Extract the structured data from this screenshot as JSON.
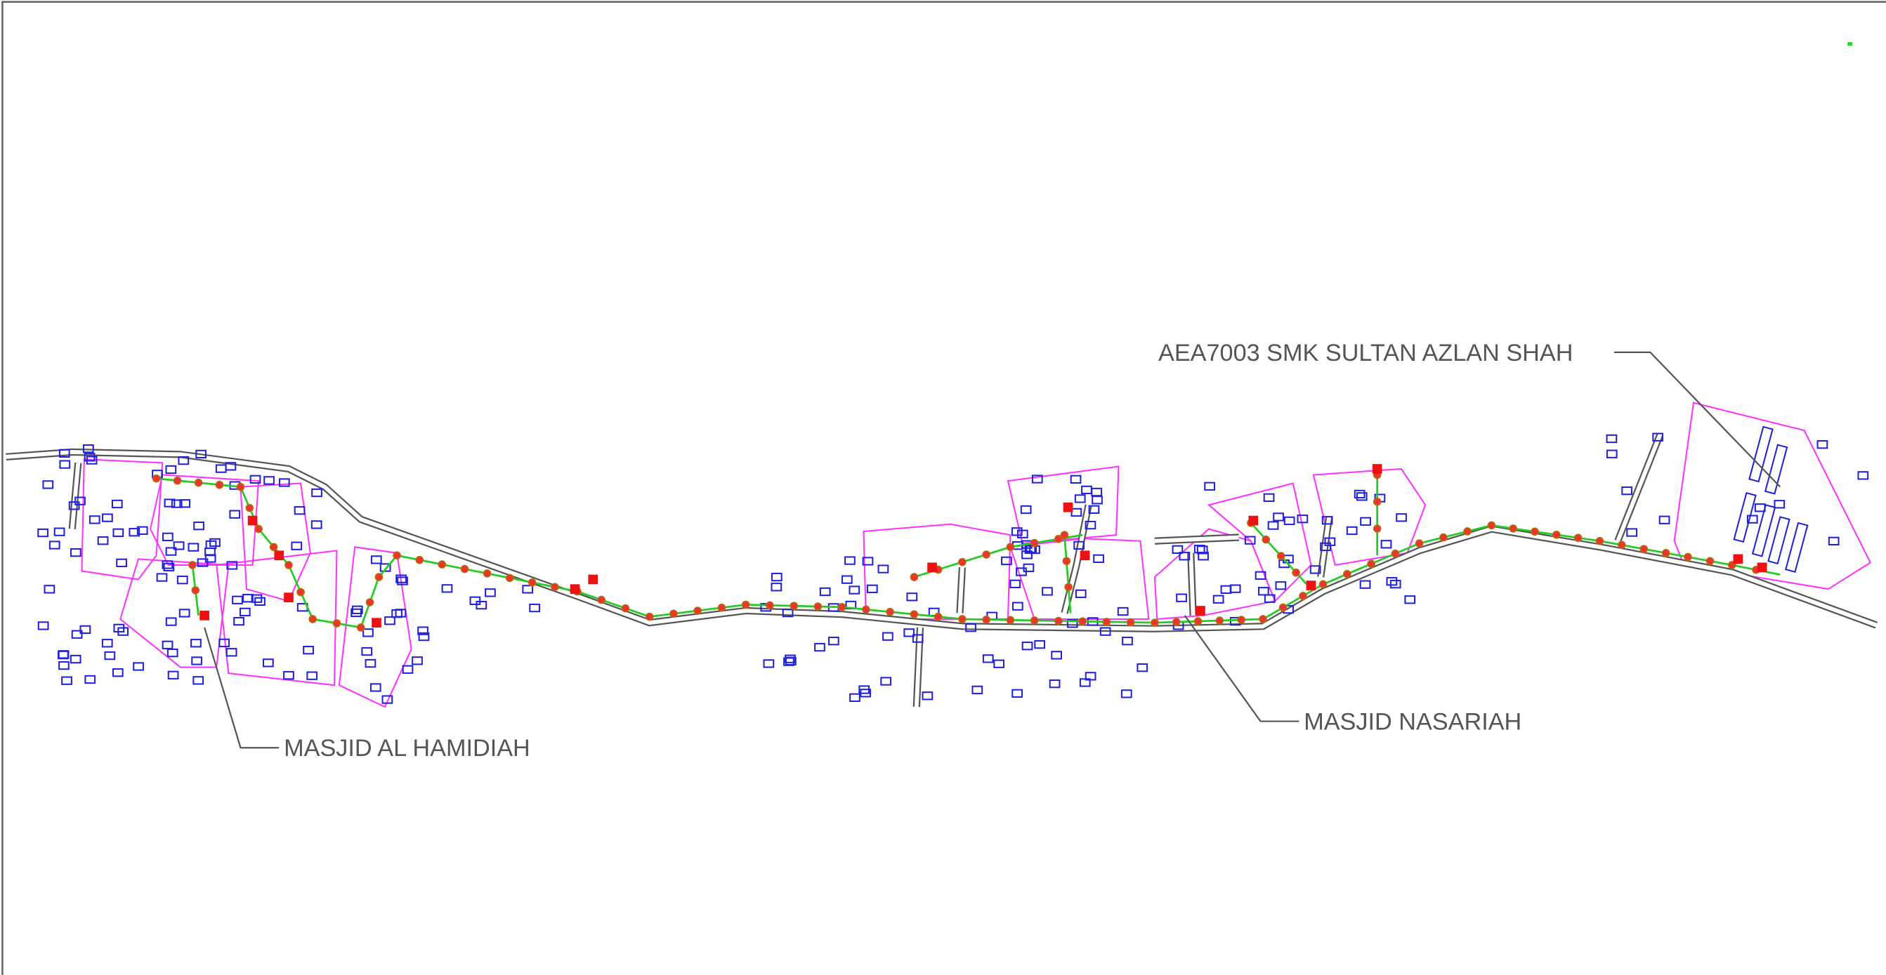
{
  "annotations": [
    {
      "text": "AEA7003 SMK SULTAN AZLAN SHAH"
    },
    {
      "text": "MASJID NASARIAH"
    },
    {
      "text": "MASJID AL HAMIDIAH"
    }
  ]
}
